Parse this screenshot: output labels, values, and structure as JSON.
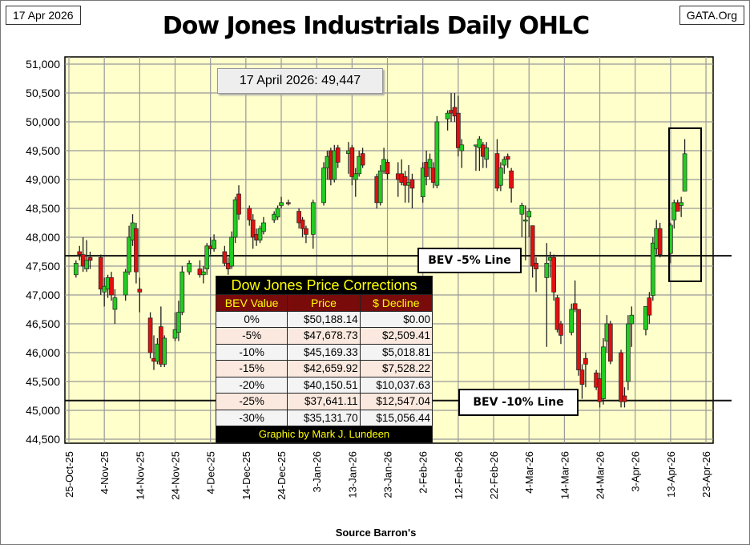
{
  "header": {
    "date_box": "17 Apr 2026",
    "site": "GATA.Org",
    "source": "Source Barron's"
  },
  "annotation": "17 April 2026: 49,447",
  "bev_labels": {
    "minus5": "BEV -5% Line",
    "minus10": "BEV -10% Line"
  },
  "table": {
    "title": "Dow Jones Price Corrections",
    "columns": [
      "BEV Value",
      "Price",
      "$ Decline"
    ],
    "rows": [
      [
        "0%",
        "$50,188.14",
        "$0.00"
      ],
      [
        "-5%",
        "$47,678.73",
        "$2,509.41"
      ],
      [
        "-10%",
        "$45,169.33",
        "$5,018.81"
      ],
      [
        "-15%",
        "$42,659.92",
        "$7,528.22"
      ],
      [
        "-20%",
        "$40,150.51",
        "$10,037.63"
      ],
      [
        "-25%",
        "$37,641.11",
        "$12,547.04"
      ],
      [
        "-30%",
        "$35,131.70",
        "$15,056.44"
      ]
    ],
    "footer": "Graphic by Mark J. Lundeen"
  },
  "colors": {
    "up": "#22cc22",
    "down": "#e01010",
    "plot_bg": "#ffffcc",
    "grid": "#999999"
  },
  "chart_data": {
    "type": "candlestick",
    "title": "Dow Jones Industrials Daily OHLC",
    "xlabel": "",
    "ylabel": "",
    "ylim": [
      44500,
      51000
    ],
    "xlim": [
      "2025-10-25",
      "2026-04-23"
    ],
    "yticks": [
      44500,
      45000,
      45500,
      46000,
      46500,
      47000,
      47500,
      48000,
      48500,
      49000,
      49500,
      50000,
      50500,
      51000
    ],
    "ytick_labels": [
      "44,500",
      "45,000",
      "45,500",
      "46,000",
      "46,500",
      "47,000",
      "47,500",
      "48,000",
      "48,500",
      "49,000",
      "49,500",
      "50,000",
      "50,500",
      "51,000"
    ],
    "xtick_dates": [
      "2025-10-25",
      "2025-11-04",
      "2025-11-14",
      "2025-11-24",
      "2025-12-04",
      "2025-12-14",
      "2025-12-24",
      "2026-01-03",
      "2026-01-13",
      "2026-01-23",
      "2026-02-02",
      "2026-02-12",
      "2026-02-22",
      "2026-03-04",
      "2026-03-14",
      "2026-03-24",
      "2026-04-03",
      "2026-04-13",
      "2026-04-23"
    ],
    "xtick_labels": [
      "25-Oct-25",
      "4-Nov-25",
      "14-Nov-25",
      "24-Nov-25",
      "4-Dec-25",
      "14-Dec-25",
      "24-Dec-25",
      "3-Jan-26",
      "13-Jan-26",
      "23-Jan-26",
      "2-Feb-26",
      "12-Feb-26",
      "22-Feb-26",
      "4-Mar-26",
      "14-Mar-26",
      "24-Mar-26",
      "3-Apr-26",
      "13-Apr-26",
      "23-Apr-26"
    ],
    "hlines": [
      {
        "label": "BEV -5% Line",
        "value": 47678.73
      },
      {
        "label": "BEV -10% Line",
        "value": 45169.33
      }
    ],
    "grid": true,
    "ohlc": [
      [
        "2025-10-27",
        47350,
        47600,
        47300,
        47550
      ],
      [
        "2025-10-28",
        47750,
        47850,
        47600,
        47700
      ],
      [
        "2025-10-29",
        47700,
        48000,
        47400,
        47500
      ],
      [
        "2025-10-30",
        47450,
        47950,
        47400,
        47600
      ],
      [
        "2025-10-31",
        47650,
        47750,
        47450,
        47600
      ],
      [
        "2025-11-03",
        47650,
        47700,
        47000,
        47100
      ],
      [
        "2025-11-04",
        47050,
        47300,
        46800,
        47150
      ],
      [
        "2025-11-05",
        47100,
        47350,
        46950,
        47300
      ],
      [
        "2025-11-06",
        47300,
        47400,
        46900,
        47000
      ],
      [
        "2025-11-07",
        46750,
        47100,
        46500,
        46950
      ],
      [
        "2025-11-10",
        47000,
        47450,
        46900,
        47400
      ],
      [
        "2025-11-11",
        47400,
        48200,
        47350,
        48000
      ],
      [
        "2025-11-12",
        47950,
        48400,
        47850,
        48250
      ],
      [
        "2025-11-13",
        48150,
        48250,
        47200,
        47400
      ],
      [
        "2025-11-14",
        47100,
        47300,
        46700,
        47050
      ],
      [
        "2025-11-17",
        46600,
        46700,
        45900,
        46000
      ],
      [
        "2025-11-18",
        45900,
        46300,
        45700,
        45850
      ],
      [
        "2025-11-19",
        45850,
        46250,
        45800,
        46150
      ],
      [
        "2025-11-20",
        46450,
        46800,
        45750,
        45800
      ],
      [
        "2025-11-21",
        45800,
        46300,
        45750,
        46250
      ],
      [
        "2025-11-24",
        46250,
        46700,
        46200,
        46400
      ],
      [
        "2025-11-25",
        46350,
        46900,
        46200,
        46700
      ],
      [
        "2025-11-26",
        46700,
        47500,
        46650,
        47400
      ],
      [
        "2025-11-28",
        47400,
        47600,
        47350,
        47550
      ],
      [
        "2025-12-01",
        47450,
        47600,
        47300,
        47350
      ],
      [
        "2025-12-02",
        47350,
        47500,
        47200,
        47400
      ],
      [
        "2025-12-03",
        47450,
        47900,
        47350,
        47850
      ],
      [
        "2025-12-04",
        47850,
        48000,
        47700,
        47800
      ],
      [
        "2025-12-05",
        47800,
        48050,
        47750,
        47950
      ],
      [
        "2025-12-08",
        47750,
        47850,
        47500,
        47550
      ],
      [
        "2025-12-09",
        47550,
        47650,
        47350,
        47450
      ],
      [
        "2025-12-10",
        47500,
        48100,
        47450,
        48000
      ],
      [
        "2025-12-11",
        48000,
        48700,
        47900,
        48650
      ],
      [
        "2025-12-12",
        48750,
        48900,
        48300,
        48400
      ],
      [
        "2025-12-15",
        48500,
        48550,
        48200,
        48300
      ],
      [
        "2025-12-16",
        48300,
        48400,
        47800,
        48000
      ],
      [
        "2025-12-17",
        48050,
        48150,
        47850,
        47950
      ],
      [
        "2025-12-18",
        47950,
        48200,
        47900,
        48150
      ],
      [
        "2025-12-19",
        48100,
        48350,
        48050,
        48250
      ],
      [
        "2025-12-22",
        48300,
        48450,
        48250,
        48400
      ],
      [
        "2025-12-23",
        48350,
        48550,
        48300,
        48500
      ],
      [
        "2025-12-24",
        48550,
        48700,
        48500,
        48600
      ],
      [
        "2025-12-26",
        48600,
        48650,
        48550,
        48580
      ],
      [
        "2025-12-29",
        48450,
        48500,
        48150,
        48250
      ],
      [
        "2025-12-30",
        48300,
        48350,
        48000,
        48150
      ],
      [
        "2025-12-31",
        48150,
        48200,
        47900,
        48050
      ],
      [
        "2026-01-02",
        48050,
        48650,
        47800,
        48600
      ],
      [
        "2026-01-05",
        48600,
        49300,
        48550,
        49200
      ],
      [
        "2026-01-06",
        49200,
        49500,
        49000,
        49400
      ],
      [
        "2026-01-07",
        49500,
        49550,
        48900,
        49000
      ],
      [
        "2026-01-08",
        49000,
        49600,
        48950,
        49500
      ],
      [
        "2026-01-09",
        49550,
        49600,
        49200,
        49300
      ],
      [
        "2026-01-12",
        49450,
        49650,
        49100,
        49500
      ],
      [
        "2026-01-13",
        49550,
        49600,
        48900,
        49050
      ],
      [
        "2026-01-14",
        49000,
        49200,
        48700,
        49100
      ],
      [
        "2026-01-15",
        49100,
        49500,
        49050,
        49400
      ],
      [
        "2026-01-16",
        49450,
        49550,
        49200,
        49250
      ],
      [
        "2026-01-20",
        49050,
        49100,
        48500,
        48600
      ],
      [
        "2026-01-21",
        48600,
        49250,
        48550,
        49150
      ],
      [
        "2026-01-22",
        49150,
        49550,
        49100,
        49350
      ],
      [
        "2026-01-23",
        49300,
        49350,
        49000,
        49100
      ],
      [
        "2026-01-26",
        49100,
        49300,
        48700,
        49000
      ],
      [
        "2026-01-27",
        49100,
        49350,
        48900,
        48950
      ],
      [
        "2026-01-28",
        49050,
        49150,
        48600,
        48900
      ],
      [
        "2026-01-29",
        48900,
        49250,
        48600,
        48950
      ],
      [
        "2026-01-30",
        49000,
        49100,
        48500,
        48850
      ],
      [
        "2026-02-02",
        48700,
        49300,
        48600,
        49200
      ],
      [
        "2026-02-03",
        49300,
        49500,
        48900,
        49050
      ],
      [
        "2026-02-04",
        49200,
        49450,
        49000,
        49350
      ],
      [
        "2026-02-05",
        49200,
        49300,
        48850,
        48950
      ],
      [
        "2026-02-06",
        48900,
        50100,
        48850,
        50000
      ],
      [
        "2026-02-09",
        50050,
        50200,
        49850,
        50150
      ],
      [
        "2026-02-10",
        50200,
        50500,
        50000,
        50150
      ],
      [
        "2026-02-11",
        50250,
        50500,
        50000,
        50100
      ],
      [
        "2026-02-12",
        50150,
        50450,
        49400,
        49550
      ],
      [
        "2026-02-13",
        49500,
        49700,
        49200,
        49600
      ],
      [
        "2026-02-17",
        49600,
        49600,
        49150,
        49600
      ],
      [
        "2026-02-18",
        49550,
        49750,
        49150,
        49700
      ],
      [
        "2026-02-19",
        49600,
        49650,
        49200,
        49400
      ],
      [
        "2026-02-20",
        49350,
        49650,
        49200,
        49550
      ],
      [
        "2026-02-23",
        49450,
        49700,
        48800,
        48850
      ],
      [
        "2026-02-24",
        48900,
        49300,
        48800,
        49200
      ],
      [
        "2026-02-25",
        49250,
        49400,
        49100,
        49350
      ],
      [
        "2026-02-26",
        49400,
        49450,
        49200,
        49350
      ],
      [
        "2026-02-27",
        49150,
        49200,
        48600,
        48850
      ],
      [
        "2026-03-02",
        48400,
        48600,
        48000,
        48550
      ],
      [
        "2026-03-03",
        48300,
        48550,
        47600,
        48300
      ],
      [
        "2026-03-04",
        48350,
        48500,
        48000,
        48450
      ],
      [
        "2026-03-05",
        48200,
        48200,
        47300,
        47500
      ],
      [
        "2026-03-06",
        47550,
        47650,
        47050,
        47450
      ],
      [
        "2026-03-09",
        47300,
        47900,
        46100,
        47550
      ],
      [
        "2026-03-10",
        47600,
        47750,
        47300,
        47650
      ],
      [
        "2026-03-11",
        47650,
        47700,
        46900,
        47050
      ],
      [
        "2026-03-12",
        46950,
        47000,
        46350,
        46400
      ],
      [
        "2026-03-13",
        46500,
        46550,
        46150,
        46300
      ],
      [
        "2026-03-16",
        46350,
        46850,
        46300,
        46750
      ],
      [
        "2026-03-17",
        46850,
        47250,
        46700,
        46750
      ],
      [
        "2026-03-18",
        46750,
        46750,
        45600,
        45700
      ],
      [
        "2026-03-19",
        45700,
        45800,
        45200,
        45450
      ],
      [
        "2026-03-20",
        45900,
        46000,
        45400,
        45800
      ],
      [
        "2026-03-23",
        45650,
        45700,
        45350,
        45400
      ],
      [
        "2026-03-24",
        45550,
        45650,
        45050,
        45150
      ],
      [
        "2026-03-25",
        45200,
        46250,
        45100,
        46100
      ],
      [
        "2026-03-26",
        46200,
        46650,
        46000,
        46500
      ],
      [
        "2026-03-27",
        46500,
        46550,
        45800,
        45850
      ],
      [
        "2026-03-30",
        46000,
        46050,
        45050,
        45150
      ],
      [
        "2026-03-31",
        45250,
        45400,
        45050,
        45150
      ],
      [
        "2026-04-01",
        45500,
        46650,
        45350,
        46500
      ],
      [
        "2026-04-02",
        46500,
        46800,
        46100,
        46650
      ],
      [
        "2026-04-06",
        46400,
        46750,
        46300,
        46800
      ],
      [
        "2026-04-07",
        46950,
        47050,
        46500,
        46650
      ],
      [
        "2026-04-08",
        46990,
        48000,
        46900,
        47900
      ],
      [
        "2026-04-09",
        47800,
        48300,
        47700,
        48150
      ],
      [
        "2026-04-10",
        48150,
        48250,
        47650,
        47700
      ],
      [
        "2026-04-13",
        47720,
        48250,
        47550,
        48210
      ],
      [
        "2026-04-14",
        48300,
        48650,
        48150,
        48600
      ],
      [
        "2026-04-15",
        48600,
        48650,
        48450,
        48450
      ],
      [
        "2026-04-16",
        48550,
        48700,
        48350,
        48600
      ],
      [
        "2026-04-17",
        48800,
        49700,
        48800,
        49447
      ]
    ]
  }
}
